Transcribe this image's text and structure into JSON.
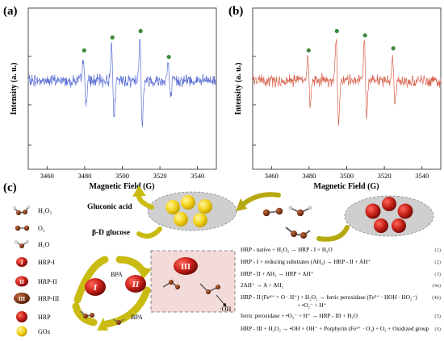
{
  "panels": {
    "a": "(a)",
    "b": "(b)",
    "c": "(c)"
  },
  "chart_data": [
    {
      "type": "line",
      "panel": "(a)",
      "xlabel": "Magnetic Field (G)",
      "ylabel": "Intensity (a. u.)",
      "xlim": [
        3450,
        3550
      ],
      "xticks": [
        3460,
        3480,
        3500,
        3520,
        3540
      ],
      "line_color": "#5b6fd6",
      "marker_color": "#3f8a3a",
      "peaks": [
        {
          "x": 3480,
          "amp": 0.55
        },
        {
          "x": 3495,
          "amp": 0.85
        },
        {
          "x": 3510,
          "amp": 1.0
        },
        {
          "x": 3525,
          "amp": 0.4
        }
      ]
    },
    {
      "type": "line",
      "panel": "(b)",
      "xlabel": "Magnetic Field (G)",
      "ylabel": "Intensity (a. u.)",
      "xlim": [
        3450,
        3550
      ],
      "xticks": [
        3460,
        3480,
        3500,
        3520,
        3540
      ],
      "line_color": "#d9634f",
      "marker_color": "#3f8a3a",
      "peaks": [
        {
          "x": 3480,
          "amp": 0.55
        },
        {
          "x": 3495,
          "amp": 1.0
        },
        {
          "x": 3510,
          "amp": 0.9
        },
        {
          "x": 3525,
          "amp": 0.6
        }
      ]
    }
  ],
  "legend": [
    {
      "label": "H₂O₂",
      "icon": "h2o2-molecule-icon"
    },
    {
      "label": "O₂",
      "icon": "o2-molecule-icon"
    },
    {
      "label": "H₂O",
      "icon": "h2o-molecule-icon"
    },
    {
      "label": "HRP-I",
      "icon": "hrp-i-icon",
      "mark": "I"
    },
    {
      "label": "HRP-II",
      "icon": "hrp-ii-icon",
      "mark": "II"
    },
    {
      "label": "HRP-III",
      "icon": "hrp-iii-icon",
      "mark": "III"
    },
    {
      "label": "HRP",
      "icon": "hrp-icon"
    },
    {
      "label": "GOx",
      "icon": "gox-icon"
    }
  ],
  "scheme": {
    "gluconic_acid": "Gluconic acid",
    "glucose": "β-D glucose",
    "bpa_top": "BPA",
    "bpa_bottom": "BPA",
    "oh": "·OH",
    "cycle_marks": [
      "I",
      "II",
      "III"
    ]
  },
  "equations": [
    {
      "text": "HRP - native + H₂O₂ → HRP - I + H₂O",
      "num": "(1)"
    },
    {
      "text": "HRP - I + reducing substrates (AH₂) → HRP - II + AH⁺",
      "num": "(2)"
    },
    {
      "text": "HRP - II + AH₂ → HRP + AH⁺",
      "num": "(3)"
    },
    {
      "text": "2AH⁺ → A + AH₂",
      "num": "(4a)"
    },
    {
      "text": "HRP - II (Fe⁴⁺ = O · H⁺) + H₂O₂ → ferric peroxidase (Fe³⁺ · HOH · HO₂⁻)",
      "num": "(4b)"
    },
    {
      "text": "+ •O₂⁻ + H⁺",
      "num": ""
    },
    {
      "text": "ferric peroxidase + •O₂⁻ + H⁺ → HRP - III + H₂O",
      "num": "(5)"
    },
    {
      "text": "HRP - III + H₂O₂ → •OH + OH⁻ + Porphyrin (Fe³⁺ · O₃) + O₂ + Oxidized group",
      "num": "(6)"
    }
  ]
}
